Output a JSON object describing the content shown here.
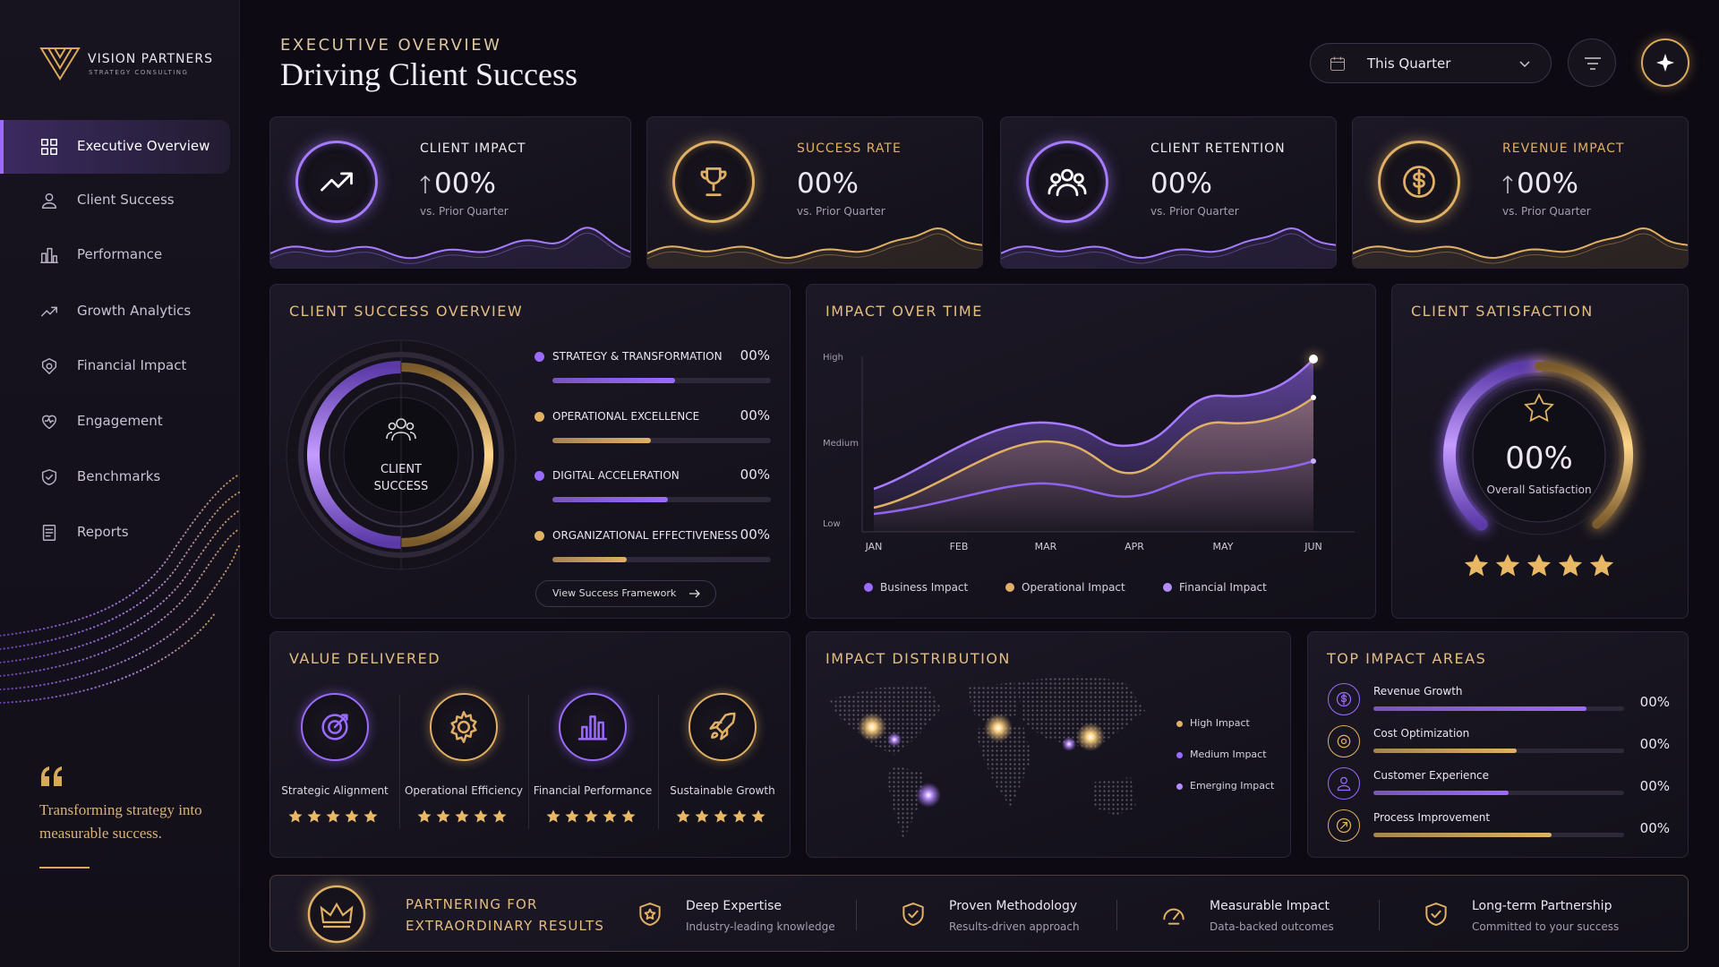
{
  "sidebar": {
    "brand": "VISION PARTNERS",
    "tagline": "STRATEGY CONSULTING",
    "nav": [
      "Executive Overview",
      "Client Success",
      "Performance",
      "Growth Analytics",
      "Financial Impact",
      "Engagement",
      "Benchmarks",
      "Reports"
    ],
    "quote": "Transforming strategy into measurable success."
  },
  "header": {
    "eyebrow": "EXECUTIVE OVERVIEW",
    "title": "Driving Client Success",
    "period": "This Quarter"
  },
  "kpis": [
    {
      "label": "CLIENT IMPACT",
      "value": "00%",
      "note": "vs. Prior Quarter",
      "color": "#a77bff"
    },
    {
      "label": "SUCCESS RATE",
      "value": "00%",
      "note": "vs. Prior Quarter",
      "color": "#e0b064"
    },
    {
      "label": "CLIENT RETENTION",
      "value": "00%",
      "note": "vs. Prior Quarter",
      "color": "#a77bff"
    },
    {
      "label": "REVENUE IMPACT",
      "value": "00%",
      "note": "vs. Prior Quarter",
      "color": "#e0b064"
    }
  ],
  "overview": {
    "title": "CLIENT SUCCESS OVERVIEW",
    "center": "CLIENT SUCCESS",
    "items": [
      {
        "label": "STRATEGY & TRANSFORMATION",
        "value": "00%",
        "color": "#9b6bff"
      },
      {
        "label": "OPERATIONAL EXCELLENCE",
        "value": "00%",
        "color": "#e0b064"
      },
      {
        "label": "DIGITAL ACCELERATION",
        "value": "00%",
        "color": "#9b6bff"
      },
      {
        "label": "ORGANIZATIONAL EFFECTIVENESS",
        "value": "00%",
        "color": "#e0b064"
      }
    ],
    "link": "View Success Framework"
  },
  "impact_over_time": {
    "title": "IMPACT OVER TIME",
    "levels": [
      "High",
      "Medium",
      "Low"
    ],
    "months": [
      "JAN",
      "FEB",
      "MAR",
      "APR",
      "MAY",
      "JUN"
    ],
    "legend": [
      {
        "name": "Business Impact",
        "color": "#9b6bff"
      },
      {
        "name": "Operational Impact",
        "color": "#e0b064"
      },
      {
        "name": "Financial Impact",
        "color": "#b48cff"
      }
    ]
  },
  "satisfaction": {
    "title": "CLIENT SATISFACTION",
    "value": "00%",
    "label": "Overall Satisfaction",
    "stars": 5
  },
  "value_delivered": {
    "title": "VALUE DELIVERED",
    "items": [
      {
        "label": "Strategic Alignment",
        "stars": 5
      },
      {
        "label": "Operational Efficiency",
        "stars": 5
      },
      {
        "label": "Financial Performance",
        "stars": 5
      },
      {
        "label": "Sustainable Growth",
        "stars": 5
      }
    ]
  },
  "distribution": {
    "title": "IMPACT DISTRIBUTION",
    "legend": [
      {
        "name": "High Impact",
        "color": "#e0b064"
      },
      {
        "name": "Medium Impact",
        "color": "#9b6bff"
      },
      {
        "name": "Emerging Impact",
        "color": "#b48cff"
      }
    ]
  },
  "top_areas": {
    "title": "TOP IMPACT AREAS",
    "items": [
      {
        "label": "Revenue Growth",
        "value": "00%",
        "color": "#9b6bff"
      },
      {
        "label": "Cost Optimization",
        "value": "00%",
        "color": "#e0b064"
      },
      {
        "label": "Customer Experience",
        "value": "00%",
        "color": "#9b6bff"
      },
      {
        "label": "Process Improvement",
        "value": "00%",
        "color": "#e0b064"
      }
    ]
  },
  "banner": {
    "title": "PARTNERING FOR EXTRAORDINARY RESULTS",
    "items": [
      {
        "title": "Deep Expertise",
        "subtitle": "Industry-leading knowledge"
      },
      {
        "title": "Proven Methodology",
        "subtitle": "Results-driven approach"
      },
      {
        "title": "Measurable Impact",
        "subtitle": "Data-backed outcomes"
      },
      {
        "title": "Long-term Partnership",
        "subtitle": "Committed to your success"
      }
    ]
  }
}
